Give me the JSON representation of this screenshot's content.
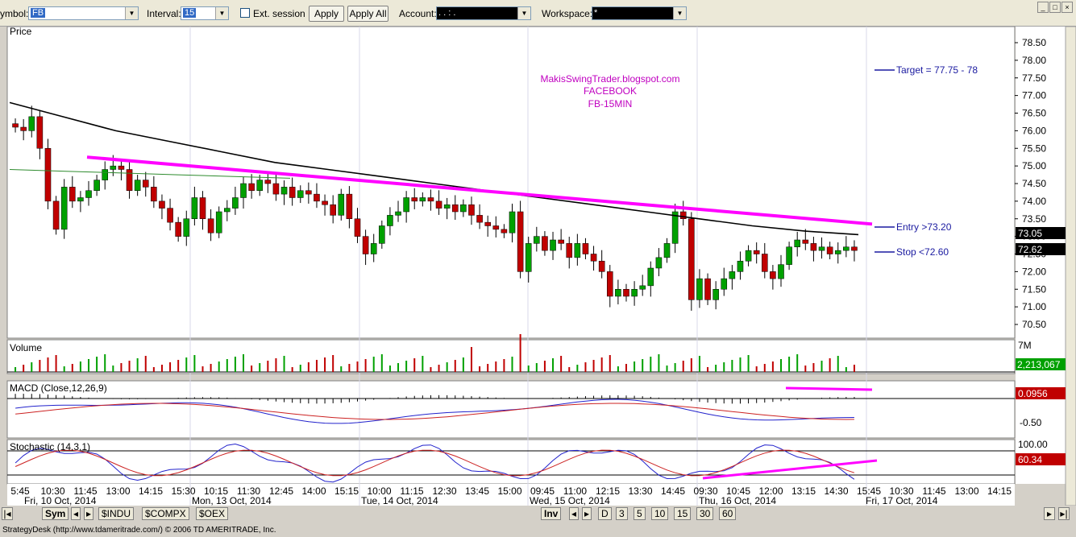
{
  "toolbar": {
    "symbol_label": "ymbol:",
    "symbol_value": "FB",
    "interval_label": "Interval:",
    "interval_value": "15",
    "ext_session_label": "Ext. session",
    "apply_label": "Apply",
    "apply_all_label": "Apply All",
    "account_label": "Account:",
    "account_value": ". .  :  .",
    "workspace_label": "Workspace:",
    "workspace_value": "*"
  },
  "annotations": {
    "blog": "MakisSwingTrader.blogspot.com",
    "company": "FACEBOOK",
    "timeframe": "FB-15MIN",
    "target": "Target = 77.75 - 78",
    "entry": "Entry >73.20",
    "stop": "Stop <72.60"
  },
  "panels": {
    "price_title": "Price",
    "volume_title": "Volume",
    "volume_scale": "7M",
    "volume_value": "2,213,067",
    "macd_title": "MACD (Close,12,26,9)",
    "macd_value": "0.0956",
    "macd_tick": "-0.50",
    "stoch_title": "Stochastic (14,3,1)",
    "stoch_top": "100.00",
    "stoch_value": "60.34"
  },
  "price_markers": {
    "ma_value": "73.05",
    "last_price": "72.62"
  },
  "chart_data": {
    "type": "candlestick",
    "symbol": "FB",
    "interval": "15",
    "ylim": [
      70.25,
      78.75
    ],
    "yticks": [
      "78.50",
      "78.00",
      "77.50",
      "77.00",
      "76.50",
      "76.00",
      "75.50",
      "75.00",
      "74.50",
      "74.00",
      "73.50",
      "73.00",
      "72.50",
      "72.00",
      "71.50",
      "71.00",
      "70.50"
    ],
    "time_ticks": [
      "5:45",
      "10:30",
      "11:45",
      "13:00",
      "14:15",
      "15:30",
      "10:15",
      "11:30",
      "12:45",
      "14:00",
      "15:15",
      "10:00",
      "11:15",
      "12:30",
      "13:45",
      "15:00",
      "09:45",
      "11:00",
      "12:15",
      "13:30",
      "14:45",
      "09:30",
      "10:45",
      "12:00",
      "13:15",
      "14:30",
      "15:45",
      "10:30",
      "11:45",
      "13:00",
      "14:15"
    ],
    "date_ticks": [
      "Fri, 10 Oct, 2014",
      "Mon, 13 Oct, 2014",
      "Tue, 14 Oct, 2014",
      "Wed, 15 Oct, 2014",
      "Thu, 16 Oct, 2014",
      "Fri, 17 Oct, 2014"
    ],
    "key_levels": {
      "target": [
        77.75,
        78.0
      ],
      "entry": 73.2,
      "stop": 72.6
    },
    "close_series": [
      76.1,
      76.0,
      76.4,
      75.5,
      74.0,
      73.2,
      74.4,
      74.0,
      74.1,
      74.3,
      74.6,
      74.9,
      75.0,
      74.9,
      74.3,
      74.6,
      74.4,
      74.0,
      73.8,
      73.4,
      73.0,
      73.5,
      74.1,
      73.5,
      73.1,
      73.7,
      73.8,
      74.1,
      74.5,
      74.3,
      74.6,
      74.5,
      74.2,
      74.4,
      74.1,
      74.3,
      74.2,
      74.0,
      73.9,
      73.6,
      74.2,
      73.5,
      73.0,
      72.5,
      72.8,
      73.3,
      73.6,
      73.7,
      74.1,
      74.0,
      74.1,
      74.0,
      73.8,
      73.9,
      73.7,
      73.9,
      73.6,
      73.4,
      73.3,
      73.2,
      73.1,
      73.7,
      72.0,
      72.8,
      73.0,
      72.6,
      72.9,
      72.8,
      72.4,
      72.8,
      72.5,
      72.3,
      72.0,
      71.3,
      71.5,
      71.3,
      71.5,
      71.6,
      72.1,
      72.4,
      72.8,
      73.7,
      73.5,
      71.2,
      71.8,
      71.2,
      71.5,
      71.8,
      72.0,
      72.3,
      72.6,
      72.5,
      72.0,
      71.8,
      72.2,
      72.7,
      72.9,
      72.8,
      72.6,
      72.7,
      72.5,
      72.6,
      72.7,
      72.6
    ],
    "ma_long": [
      76.8,
      76.4,
      76.0,
      75.7,
      75.4,
      75.1,
      74.9,
      74.7,
      74.5,
      74.3,
      74.1,
      73.9,
      73.7,
      73.5,
      73.3,
      73.15,
      73.05
    ],
    "ma_short": [
      74.9,
      74.85,
      74.8,
      74.75,
      74.7,
      74.65
    ],
    "trendlines": {
      "price_resistance": [
        75.25,
        73.35
      ]
    },
    "volume": {
      "scale_label": "7M",
      "last": 2213067
    },
    "macd": {
      "params": "Close,12,26,9",
      "last": 0.0956,
      "tick": -0.5
    },
    "stochastic": {
      "params": "14,3,1",
      "last": 60.34,
      "top": 100
    }
  },
  "colors": {
    "up": "#00a000",
    "down": "#c00000",
    "trendline": "#ff00ff",
    "annotation_blue": "#1a1aa0",
    "annotation_magenta": "#c000c0",
    "ma": "#000000",
    "ma_short": "#2e8b2e",
    "macd_line": "#2222cc",
    "signal_line": "#cc2222"
  },
  "tabs": {
    "sym": "Sym",
    "indu": "$INDU",
    "compx": "$COMPX",
    "oex": "$OEX",
    "inv": "Inv",
    "d": "D",
    "i3": "3",
    "i5": "5",
    "i10": "10",
    "i15": "15",
    "i30": "30",
    "i60": "60"
  },
  "status": "StrategyDesk (http://www.tdameritrade.com/) © 2006 TD AMERITRADE, Inc."
}
